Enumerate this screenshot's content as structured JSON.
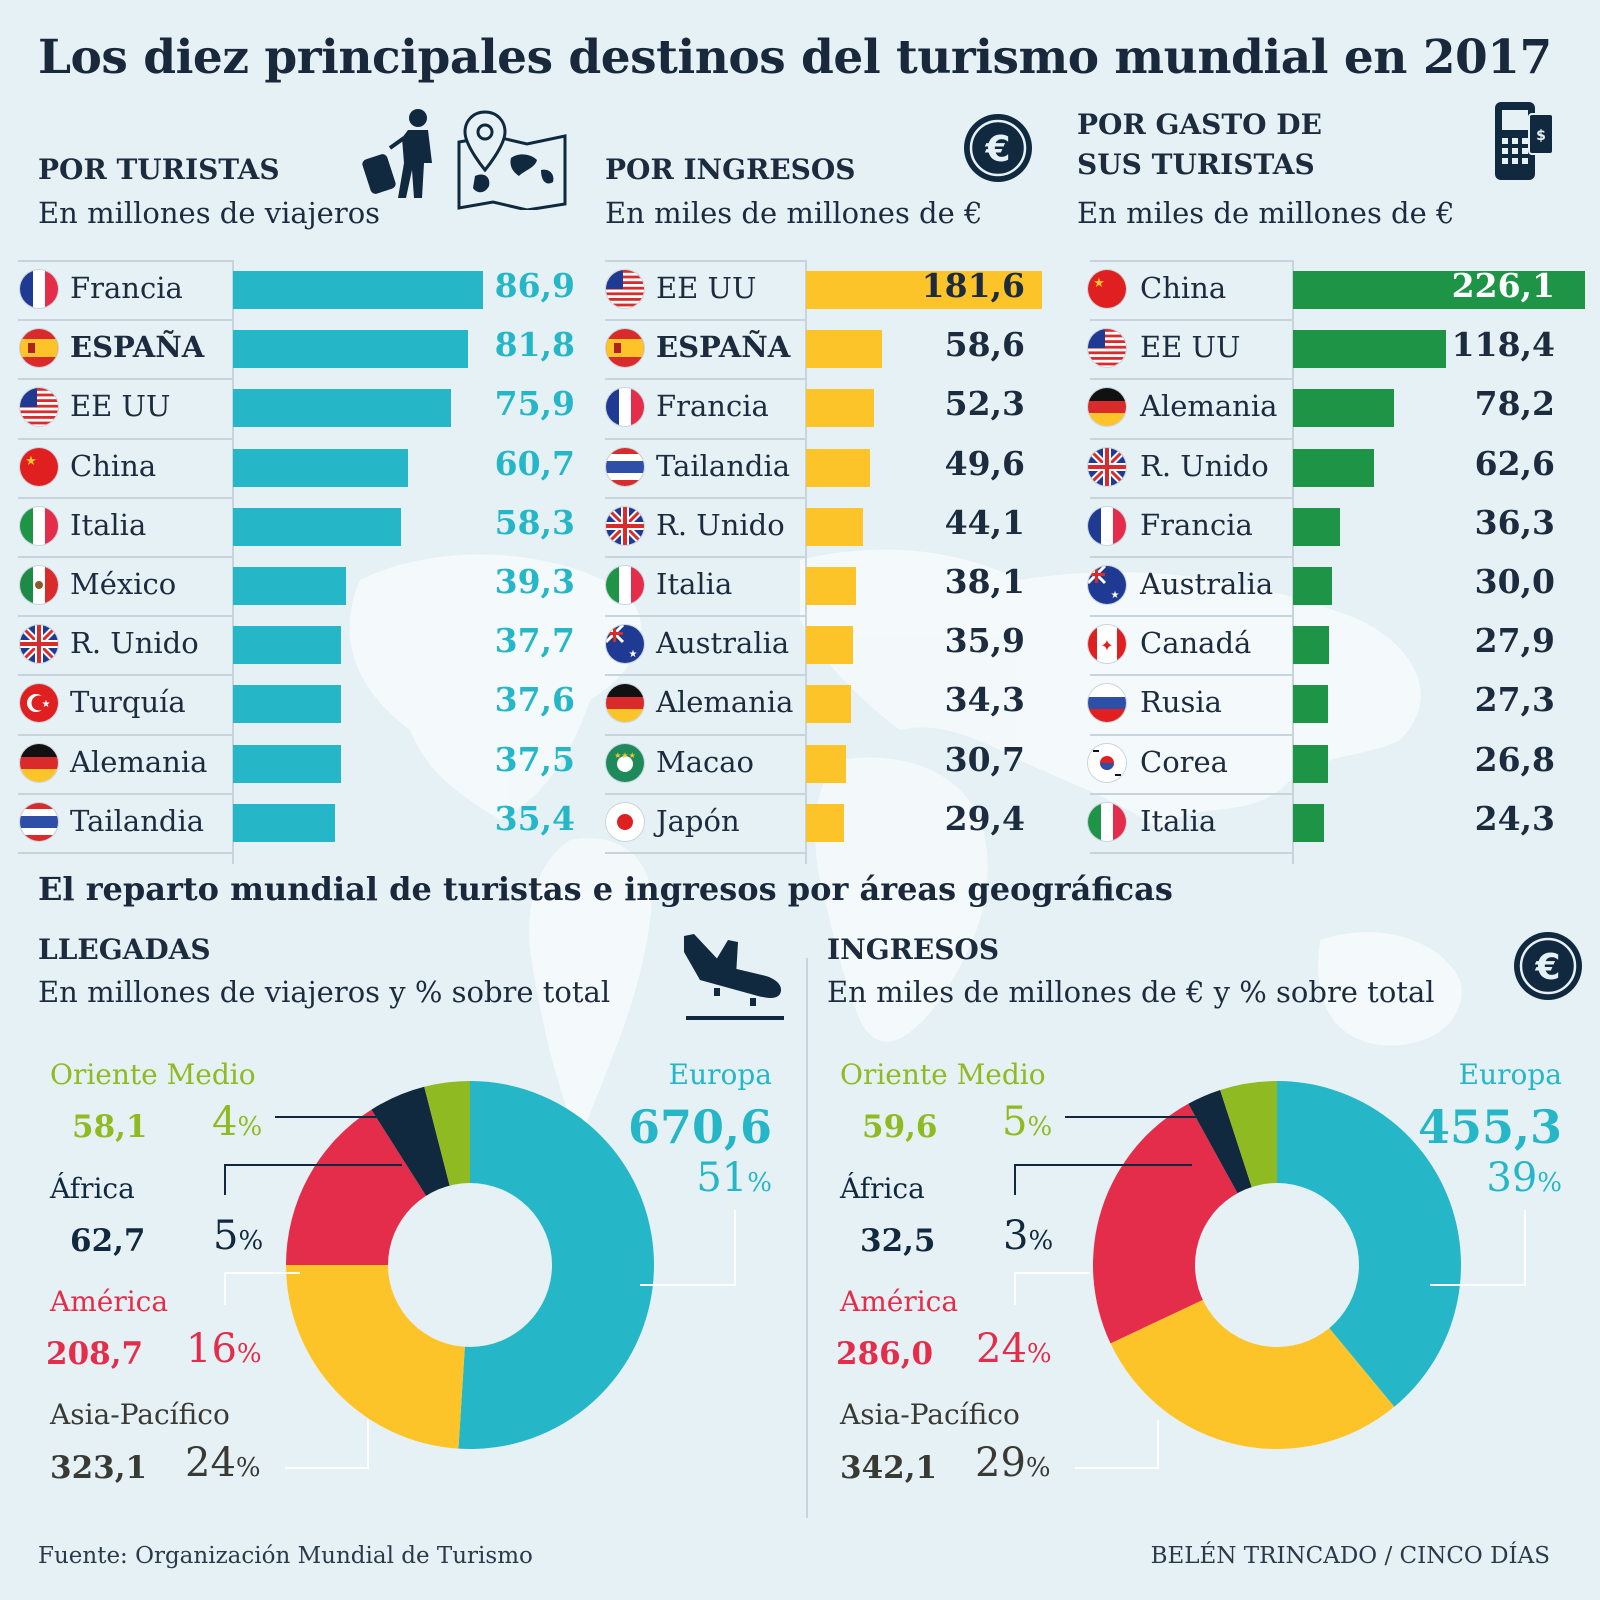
{
  "title": "Los diez principales destinos del turismo mundial en 2017",
  "colors": {
    "teal": "#25b7c7",
    "yellow": "#fdc42a",
    "green": "#1e9447",
    "red": "#e42c4b",
    "navy": "#10293f",
    "olive": "#8fba22",
    "gray": "#3a3a35"
  },
  "sections": {
    "tourists": {
      "heading": "POR TURISTAS",
      "subtitle": "En millones de viajeros"
    },
    "income": {
      "heading": "POR INGRESOS",
      "subtitle": "En miles de millones de €"
    },
    "spending": {
      "heading_line1": "POR GASTO DE",
      "heading_line2": "SUS TURISTAS",
      "subtitle": "En miles de millones de €"
    }
  },
  "icons": {
    "tourists": [
      "traveler-icon",
      "map-icon"
    ],
    "income": "euro-icon",
    "spending": "payment-terminal-icon",
    "arrivals": "airplane-landing-icon",
    "region_income": "euro-icon"
  },
  "chart_data": [
    {
      "type": "bar",
      "title": "POR TURISTAS",
      "ylabel": "En millones de viajeros",
      "categories": [
        "Francia",
        "ESPAÑA",
        "EE UU",
        "China",
        "Italia",
        "México",
        "R. Unido",
        "Turquía",
        "Alemania",
        "Tailandia"
      ],
      "labels": [
        "86,9",
        "81,8",
        "75,9",
        "60,7",
        "58,3",
        "39,3",
        "37,7",
        "37,6",
        "37,5",
        "35,4"
      ],
      "values": [
        86.9,
        81.8,
        75.9,
        60.7,
        58.3,
        39.3,
        37.7,
        37.6,
        37.5,
        35.4
      ],
      "flags": [
        "fr",
        "es",
        "us",
        "cn",
        "it",
        "mx",
        "gb",
        "tr",
        "de",
        "th"
      ],
      "xlim": [
        0,
        86.9
      ]
    },
    {
      "type": "bar",
      "title": "POR INGRESOS",
      "ylabel": "En miles de millones de €",
      "categories": [
        "EE UU",
        "ESPAÑA",
        "Francia",
        "Tailandia",
        "R. Unido",
        "Italia",
        "Australia",
        "Alemania",
        "Macao",
        "Japón"
      ],
      "labels": [
        "181,6",
        "58,6",
        "52,3",
        "49,6",
        "44,1",
        "38,1",
        "35,9",
        "34,3",
        "30,7",
        "29,4"
      ],
      "values": [
        181.6,
        58.6,
        52.3,
        49.6,
        44.1,
        38.1,
        35.9,
        34.3,
        30.7,
        29.4
      ],
      "flags": [
        "us",
        "es",
        "fr",
        "th",
        "gb",
        "it",
        "au",
        "de",
        "mo",
        "jp"
      ],
      "xlim": [
        0,
        181.6
      ]
    },
    {
      "type": "bar",
      "title": "POR GASTO DE SUS TURISTAS",
      "ylabel": "En miles de millones de €",
      "categories": [
        "China",
        "EE UU",
        "Alemania",
        "R. Unido",
        "Francia",
        "Australia",
        "Canadá",
        "Rusia",
        "Corea",
        "Italia"
      ],
      "labels": [
        "226,1",
        "118,4",
        "78,2",
        "62,6",
        "36,3",
        "30,0",
        "27,9",
        "27,3",
        "26,8",
        "24,3"
      ],
      "values": [
        226.1,
        118.4,
        78.2,
        62.6,
        36.3,
        30.0,
        27.9,
        27.3,
        26.8,
        24.3
      ],
      "flags": [
        "cn",
        "us",
        "de",
        "gb",
        "fr",
        "au",
        "ca",
        "ru",
        "kr",
        "it"
      ],
      "xlim": [
        0,
        226.1
      ]
    },
    {
      "type": "pie",
      "title": "LLEGADAS",
      "subtitle": "En millones de viajeros y % sobre total",
      "categories": [
        "Europa",
        "Asia-Pacífico",
        "América",
        "África",
        "Oriente Medio"
      ],
      "labels": [
        "670,6",
        "323,1",
        "208,7",
        "62,7",
        "58,1"
      ],
      "values": [
        670.6,
        323.1,
        208.7,
        62.7,
        58.1
      ],
      "percents": [
        "51",
        "24",
        "16",
        "5",
        "4"
      ],
      "pct_values": [
        51,
        24,
        16,
        5,
        4
      ]
    },
    {
      "type": "pie",
      "title": "INGRESOS",
      "subtitle": "En miles de millones de € y % sobre total",
      "categories": [
        "Europa",
        "Asia-Pacífico",
        "América",
        "África",
        "Oriente Medio"
      ],
      "labels": [
        "455,3",
        "342,1",
        "286,0",
        "32,5",
        "59,6"
      ],
      "values": [
        455.3,
        342.1,
        286.0,
        32.5,
        59.6
      ],
      "percents": [
        "39",
        "29",
        "24",
        "3",
        "5"
      ],
      "pct_values": [
        39,
        29,
        24,
        3,
        5
      ]
    }
  ],
  "regions_title": "El reparto mundial de turistas e ingresos por áreas geográficas",
  "pct_sign": "%",
  "footer": {
    "source": "Fuente: Organización Mundial de Turismo",
    "credit": "BELÉN TRINCADO / CINCO DÍAS"
  }
}
